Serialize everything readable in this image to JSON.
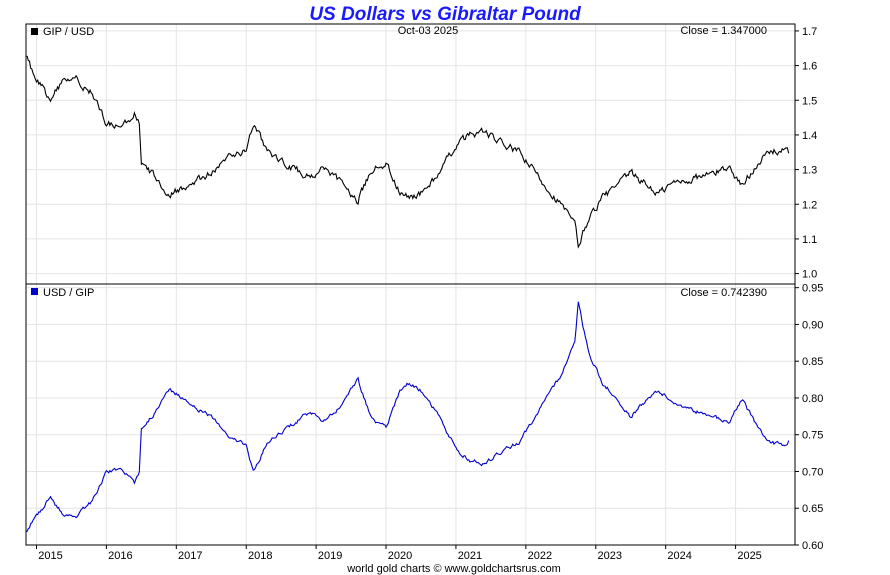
{
  "chart_data": [
    {
      "type": "line",
      "title": "US Dollars vs Gibraltar Pound",
      "date_label": "Oct-03  2025",
      "legend": "GIP / USD",
      "close_label": "Close = 1.347000",
      "series_color": "#000000",
      "ylim": [
        0.97,
        1.72
      ],
      "yticks": [
        "1.0",
        "1.1",
        "1.2",
        "1.3",
        "1.4",
        "1.5",
        "1.6",
        "1.7"
      ],
      "x": [
        2014.85,
        2015.0,
        2015.2,
        2015.4,
        2015.6,
        2015.8,
        2016.0,
        2016.2,
        2016.4,
        2016.47,
        2016.5,
        2016.7,
        2016.9,
        2017.0,
        2017.2,
        2017.5,
        2017.8,
        2018.0,
        2018.1,
        2018.3,
        2018.6,
        2018.9,
        2019.1,
        2019.3,
        2019.6,
        2019.8,
        2020.0,
        2020.2,
        2020.3,
        2020.5,
        2020.8,
        2021.0,
        2021.2,
        2021.4,
        2021.6,
        2021.9,
        2022.1,
        2022.3,
        2022.5,
        2022.7,
        2022.75,
        2022.9,
        2023.1,
        2023.3,
        2023.5,
        2023.7,
        2023.9,
        2024.1,
        2024.3,
        2024.5,
        2024.7,
        2024.9,
        2025.1,
        2025.3,
        2025.5,
        2025.7,
        2025.76
      ],
      "values": [
        1.62,
        1.56,
        1.5,
        1.56,
        1.56,
        1.52,
        1.43,
        1.42,
        1.46,
        1.43,
        1.31,
        1.28,
        1.23,
        1.24,
        1.26,
        1.29,
        1.34,
        1.36,
        1.43,
        1.35,
        1.31,
        1.28,
        1.3,
        1.27,
        1.21,
        1.3,
        1.32,
        1.23,
        1.22,
        1.23,
        1.3,
        1.37,
        1.4,
        1.41,
        1.38,
        1.35,
        1.3,
        1.25,
        1.2,
        1.14,
        1.08,
        1.16,
        1.22,
        1.25,
        1.29,
        1.26,
        1.23,
        1.26,
        1.27,
        1.28,
        1.29,
        1.31,
        1.25,
        1.32,
        1.35,
        1.36,
        1.347
      ]
    },
    {
      "type": "line",
      "legend": "USD / GIP",
      "close_label": "Close = 0.742390",
      "series_color": "#0000cc",
      "ylim": [
        0.6,
        0.955
      ],
      "yticks": [
        "0.60",
        "0.65",
        "0.70",
        "0.75",
        "0.80",
        "0.85",
        "0.90",
        "0.95"
      ],
      "x": [
        2014.85,
        2015.0,
        2015.2,
        2015.4,
        2015.6,
        2015.8,
        2016.0,
        2016.2,
        2016.4,
        2016.47,
        2016.5,
        2016.7,
        2016.9,
        2017.0,
        2017.2,
        2017.5,
        2017.8,
        2018.0,
        2018.1,
        2018.3,
        2018.6,
        2018.9,
        2019.1,
        2019.3,
        2019.6,
        2019.8,
        2020.0,
        2020.2,
        2020.3,
        2020.5,
        2020.8,
        2021.0,
        2021.2,
        2021.4,
        2021.6,
        2021.9,
        2022.1,
        2022.3,
        2022.5,
        2022.7,
        2022.75,
        2022.9,
        2023.1,
        2023.3,
        2023.5,
        2023.7,
        2023.9,
        2024.1,
        2024.3,
        2024.5,
        2024.7,
        2024.9,
        2025.1,
        2025.3,
        2025.5,
        2025.7,
        2025.76
      ],
      "values": [
        0.62,
        0.64,
        0.665,
        0.64,
        0.64,
        0.66,
        0.7,
        0.705,
        0.685,
        0.7,
        0.76,
        0.78,
        0.81,
        0.805,
        0.79,
        0.775,
        0.745,
        0.735,
        0.7,
        0.74,
        0.76,
        0.78,
        0.77,
        0.785,
        0.825,
        0.77,
        0.76,
        0.81,
        0.82,
        0.81,
        0.77,
        0.73,
        0.715,
        0.71,
        0.725,
        0.74,
        0.77,
        0.8,
        0.83,
        0.88,
        0.93,
        0.86,
        0.82,
        0.8,
        0.775,
        0.795,
        0.81,
        0.795,
        0.785,
        0.78,
        0.775,
        0.765,
        0.8,
        0.76,
        0.74,
        0.735,
        0.742
      ]
    }
  ],
  "x_axis": {
    "years": [
      "2015",
      "2016",
      "2017",
      "2018",
      "2019",
      "2020",
      "2021",
      "2022",
      "2023",
      "2024",
      "2025"
    ],
    "xlim": [
      2014.85,
      2025.85
    ]
  },
  "footer": "world gold charts © www.goldchartsrus.com",
  "colors": {
    "title": "#1a1aff",
    "grid": "#e4e4e4",
    "top_series": "#000000",
    "bottom_series": "#0000cc"
  }
}
